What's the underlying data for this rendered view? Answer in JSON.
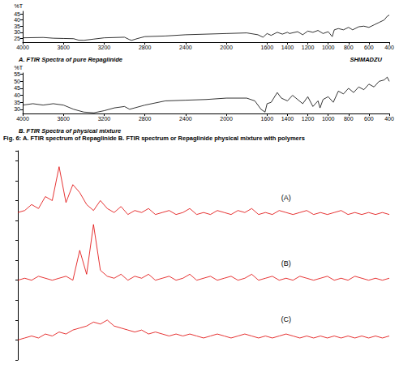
{
  "caption": "Fig. 6: A. FTIR spectrum of Repaglinide B. FTIR spectrum or Repaglinide physical mixture with polymers",
  "chart_data": [
    {
      "type": "line",
      "title": "A. FTIR Spectra of pure Repaglinide",
      "annotation": "SHIMADZU",
      "y_label": "%T",
      "color": "#000000",
      "grid": false,
      "x": [
        4000,
        3800,
        3700,
        3600,
        3500,
        3450,
        3400,
        3300,
        3200,
        3000,
        2950,
        2930,
        2870,
        2800,
        2600,
        2400,
        2200,
        2000,
        1800,
        1690,
        1640,
        1600,
        1560,
        1500,
        1450,
        1400,
        1380,
        1300,
        1250,
        1200,
        1150,
        1100,
        1050,
        1000,
        960,
        940,
        900,
        850,
        800,
        760,
        700,
        650,
        600,
        550,
        500,
        450,
        420,
        400
      ],
      "values": [
        25.5,
        25.8,
        25.2,
        25.0,
        24.8,
        23.6,
        23.5,
        24.5,
        25.5,
        26.0,
        24.0,
        23.5,
        25.0,
        26.5,
        27.0,
        28.0,
        28.5,
        29.0,
        29.5,
        28.0,
        26.0,
        29.0,
        27.5,
        30.0,
        28.5,
        30.0,
        29.0,
        30.5,
        28.0,
        31.0,
        30.0,
        31.5,
        29.0,
        30.5,
        26.5,
        32.0,
        33.0,
        32.0,
        34.0,
        32.0,
        34.5,
        35.0,
        34.0,
        36.0,
        38.0,
        40.0,
        43.0,
        44.0
      ],
      "xlim": [
        4000,
        400
      ],
      "xticks": [
        4000,
        3600,
        3200,
        2800,
        2400,
        2000,
        1600,
        1400,
        1200,
        1000,
        800,
        600,
        400
      ],
      "ylim": [
        22,
        47
      ],
      "yticks": [
        25,
        30,
        35,
        40,
        45
      ]
    },
    {
      "type": "line",
      "title": "B. FTIR Spectra of physical mixture",
      "y_label": "%T",
      "color": "#000000",
      "grid": false,
      "x": [
        4000,
        3900,
        3800,
        3700,
        3600,
        3500,
        3400,
        3300,
        3200,
        3100,
        3000,
        2950,
        2900,
        2800,
        2600,
        2400,
        2200,
        2000,
        1800,
        1720,
        1660,
        1620,
        1600,
        1560,
        1500,
        1460,
        1400,
        1350,
        1300,
        1250,
        1200,
        1150,
        1100,
        1080,
        1050,
        1000,
        950,
        900,
        850,
        800,
        750,
        700,
        650,
        600,
        550,
        500,
        450,
        420,
        400
      ],
      "values": [
        33,
        34,
        33,
        34,
        33,
        30,
        28,
        27.5,
        29,
        31,
        32,
        30,
        31,
        33,
        36,
        36.5,
        37,
        38,
        38,
        36,
        30,
        28,
        34,
        35,
        42,
        38,
        36,
        40,
        37,
        34,
        39,
        32,
        36,
        31,
        37,
        39,
        35,
        43,
        41,
        45,
        42,
        46,
        44,
        48,
        46,
        50,
        51,
        53,
        50
      ],
      "xlim": [
        4000,
        400
      ],
      "xticks": [
        4000,
        3600,
        3200,
        2800,
        2400,
        2000,
        1600,
        1400,
        1200,
        1000,
        800,
        600,
        400
      ],
      "ylim": [
        27,
        56
      ],
      "yticks": [
        30,
        35,
        40,
        45,
        50,
        55
      ]
    },
    {
      "type": "line",
      "tick_labels": false,
      "grid": false,
      "ylim": [
        0,
        105
      ],
      "series": [
        {
          "name": "(A)",
          "color": "#e00000",
          "values": [
            74,
            75,
            78,
            76,
            82,
            80,
            97,
            79,
            88,
            84,
            78,
            75,
            80,
            76,
            74,
            77,
            73,
            75,
            74,
            76,
            73,
            74,
            75,
            73,
            74,
            76,
            73,
            74,
            73,
            75,
            74,
            73,
            75,
            74,
            76,
            73,
            74,
            73,
            75,
            74,
            73,
            74,
            75,
            73,
            74,
            73,
            74,
            75,
            73,
            74,
            73,
            74,
            73,
            74,
            73
          ]
        },
        {
          "name": "(B)",
          "color": "#e00000",
          "values": [
            40,
            41,
            40,
            42,
            41,
            40,
            41,
            42,
            40,
            55,
            43,
            68,
            45,
            42,
            41,
            43,
            40,
            42,
            41,
            43,
            40,
            41,
            42,
            40,
            41,
            43,
            40,
            41,
            42,
            40,
            41,
            42,
            40,
            41,
            43,
            40,
            41,
            42,
            40,
            41,
            40,
            42,
            41,
            40,
            41,
            42,
            40,
            41,
            40,
            42,
            41,
            40,
            41,
            40,
            41
          ]
        },
        {
          "name": "(C)",
          "color": "#e00000",
          "values": [
            10,
            11,
            12,
            11,
            13,
            12,
            14,
            13,
            15,
            16,
            17,
            19,
            18,
            20,
            17,
            16,
            15,
            14,
            15,
            13,
            14,
            13,
            12,
            13,
            12,
            13,
            12,
            11,
            12,
            13,
            12,
            11,
            12,
            13,
            12,
            11,
            12,
            11,
            12,
            13,
            12,
            11,
            12,
            11,
            12,
            11,
            12,
            11,
            12,
            11,
            12,
            11,
            12,
            11,
            12
          ]
        }
      ]
    }
  ]
}
